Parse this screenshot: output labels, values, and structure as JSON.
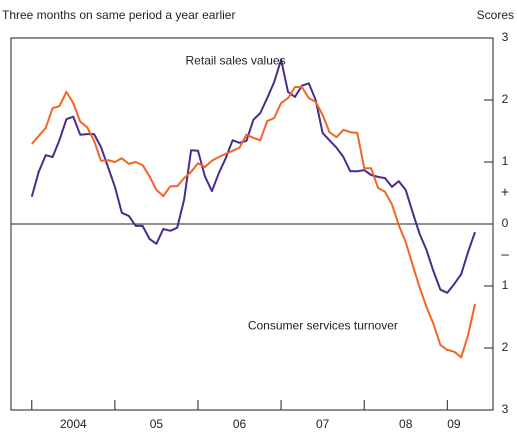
{
  "chart_data": {
    "type": "line",
    "title": "Three months on same period a year earlier",
    "y_axis_label": "Scores",
    "x": [
      2004,
      2004.083,
      2004.167,
      2004.25,
      2004.333,
      2004.417,
      2004.5,
      2004.583,
      2004.667,
      2004.75,
      2004.833,
      2004.917,
      2005,
      2005.083,
      2005.167,
      2005.25,
      2005.333,
      2005.417,
      2005.5,
      2005.583,
      2005.667,
      2005.75,
      2005.833,
      2005.917,
      2006,
      2006.083,
      2006.167,
      2006.25,
      2006.333,
      2006.417,
      2006.5,
      2006.583,
      2006.667,
      2006.75,
      2006.833,
      2006.917,
      2007,
      2007.083,
      2007.167,
      2007.25,
      2007.333,
      2007.417,
      2007.5,
      2007.583,
      2007.667,
      2007.75,
      2007.833,
      2007.917,
      2008,
      2008.083,
      2008.167,
      2008.25,
      2008.333,
      2008.417,
      2008.5,
      2008.583,
      2008.667,
      2008.75,
      2008.833,
      2008.917,
      2009,
      2009.083,
      2009.167,
      2009.25,
      2009.333
    ],
    "series": [
      {
        "name": "Retail sales values",
        "color": "#4b2c8c",
        "values": [
          0.44,
          0.84,
          1.11,
          1.08,
          1.35,
          1.69,
          1.73,
          1.44,
          1.45,
          1.45,
          1.24,
          0.92,
          0.6,
          0.18,
          0.13,
          -0.03,
          -0.03,
          -0.24,
          -0.32,
          -0.08,
          -0.11,
          -0.06,
          0.39,
          1.19,
          1.18,
          0.77,
          0.53,
          0.82,
          1.06,
          1.35,
          1.31,
          1.34,
          1.68,
          1.79,
          2.03,
          2.29,
          2.65,
          2.13,
          2.05,
          2.23,
          2.27,
          2.0,
          1.47,
          1.35,
          1.23,
          1.08,
          0.85,
          0.85,
          0.87,
          0.79,
          0.76,
          0.74,
          0.6,
          0.69,
          0.55,
          0.19,
          -0.16,
          -0.42,
          -0.76,
          -1.06,
          -1.11,
          -0.97,
          -0.81,
          -0.45,
          -0.13
        ]
      },
      {
        "name": "Consumer services turnover",
        "color": "#f26522",
        "values": [
          1.29,
          1.42,
          1.55,
          1.87,
          1.9,
          2.13,
          1.95,
          1.65,
          1.56,
          1.34,
          1.02,
          1.03,
          1.0,
          1.06,
          0.97,
          1.0,
          0.95,
          0.77,
          0.55,
          0.45,
          0.61,
          0.61,
          0.74,
          0.84,
          0.98,
          0.92,
          1.02,
          1.08,
          1.13,
          1.18,
          1.23,
          1.44,
          1.39,
          1.35,
          1.66,
          1.71,
          1.95,
          2.03,
          2.21,
          2.21,
          2.03,
          1.97,
          1.76,
          1.48,
          1.4,
          1.52,
          1.48,
          1.47,
          0.9,
          0.9,
          0.58,
          0.52,
          0.32,
          -0.02,
          -0.29,
          -0.66,
          -1.02,
          -1.34,
          -1.61,
          -1.95,
          -2.03,
          -2.06,
          -2.15,
          -1.79,
          -1.29
        ]
      }
    ],
    "xlim": [
      2003.75,
      2009.55
    ],
    "xticks": [
      2004,
      2005,
      2006,
      2007,
      2008,
      2009
    ],
    "year_labels": [
      {
        "value": 2004.5,
        "label": "2004"
      },
      {
        "value": 2005.5,
        "label": "05"
      },
      {
        "value": 2006.5,
        "label": "06"
      },
      {
        "value": 2007.5,
        "label": "07"
      },
      {
        "value": 2008.5,
        "label": "08"
      },
      {
        "value": 2009.08,
        "label": "09"
      }
    ],
    "ylim": [
      -3,
      3
    ],
    "yticks": [
      3,
      2,
      1,
      0,
      {
        "value": -1,
        "label": "1"
      },
      {
        "value": -2,
        "label": "2"
      },
      {
        "value": -3,
        "label": "3"
      }
    ],
    "sign_labels": [
      {
        "value": 0.5,
        "label": "+"
      },
      {
        "value": -0.5,
        "label": "–"
      }
    ],
    "annotations": [
      {
        "text": "Retail sales values",
        "x": 2005.85,
        "y": 2.62
      },
      {
        "text": "Consumer services turnover",
        "x": 2006.6,
        "y": -1.65
      }
    ]
  }
}
